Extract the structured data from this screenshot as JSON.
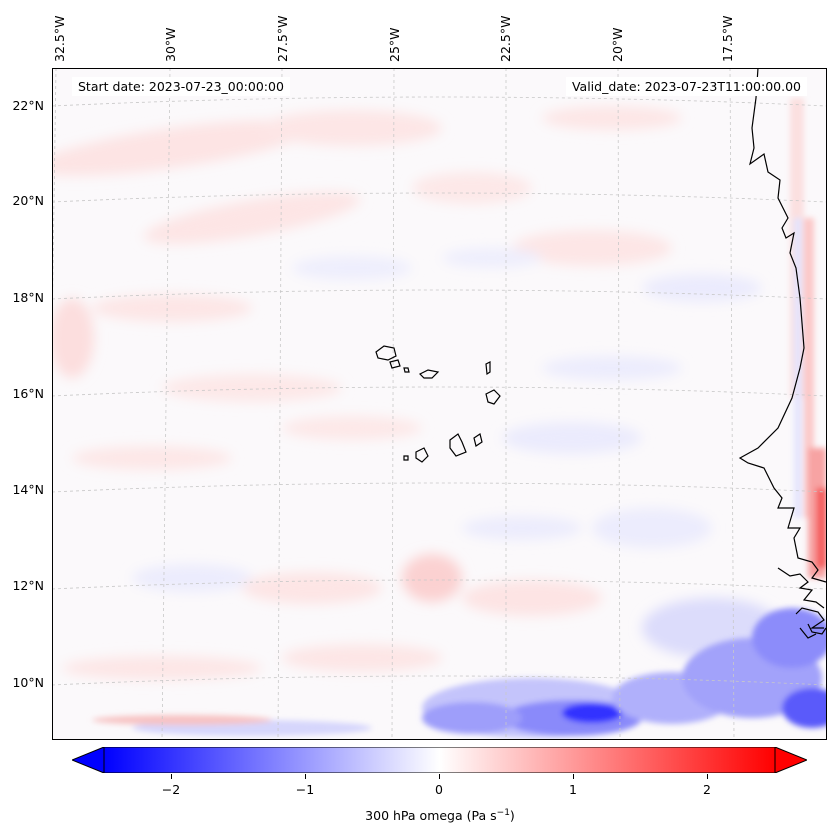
{
  "map": {
    "start_date": "Start date: 2023-07-23_00:00:00",
    "valid_date": "Valid_date: 2023-07-23T11:00:00.00",
    "lon_labels": [
      "32.5°W",
      "30°W",
      "27.5°W",
      "25°W",
      "22.5°W",
      "20°W",
      "17.5°W"
    ],
    "lat_labels": [
      "22°N",
      "20°N",
      "18°N",
      "16°N",
      "14°N",
      "12°N",
      "10°N"
    ],
    "variable": "300 hPa omega",
    "units": "Pa s",
    "units_exponent": "−1",
    "colormap": "bwr",
    "colors": {
      "min": "#0000ff",
      "mid": "#ffffff",
      "max": "#ff0000"
    }
  },
  "colorbar": {
    "ticks": [
      "−2",
      "−1",
      "0",
      "1",
      "2"
    ],
    "tick_values": [
      -2,
      -1,
      0,
      1,
      2
    ],
    "range": [
      -2.6,
      2.6
    ],
    "extend": "both"
  },
  "features": [
    "coastline",
    "cape-verde-islands",
    "west-africa-coast",
    "gridlines"
  ]
}
